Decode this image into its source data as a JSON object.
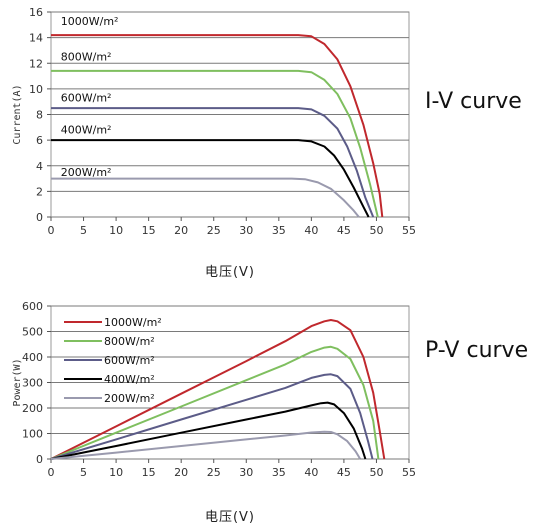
{
  "chart_data": [
    {
      "type": "line",
      "side_title": "I-V curve",
      "xlabel": "电压(V)",
      "ylabel": "Current(A)",
      "xlim": [
        0,
        55
      ],
      "ylim": [
        0,
        16
      ],
      "xticks": [
        0,
        5,
        10,
        15,
        20,
        25,
        30,
        35,
        40,
        45,
        50,
        55
      ],
      "yticks": [
        0,
        2,
        4,
        6,
        8,
        10,
        12,
        14,
        16
      ],
      "grid": "horizontal",
      "series": [
        {
          "name": "1000W/m²",
          "color": "#c0282d",
          "label_x": 1.5,
          "label_y": 15.0,
          "points": [
            [
              0,
              14.2
            ],
            [
              38,
              14.2
            ],
            [
              40,
              14.1
            ],
            [
              42,
              13.5
            ],
            [
              44,
              12.3
            ],
            [
              46,
              10.2
            ],
            [
              48,
              7.2
            ],
            [
              49.5,
              4.2
            ],
            [
              50.5,
              1.8
            ],
            [
              50.9,
              0
            ]
          ]
        },
        {
          "name": "800W/m²",
          "color": "#7fbf5f",
          "label_x": 1.5,
          "label_y": 12.2,
          "points": [
            [
              0,
              11.4
            ],
            [
              38,
              11.4
            ],
            [
              40,
              11.3
            ],
            [
              42,
              10.7
            ],
            [
              44,
              9.6
            ],
            [
              46,
              7.7
            ],
            [
              47.5,
              5.4
            ],
            [
              49,
              2.6
            ],
            [
              50.2,
              0
            ]
          ]
        },
        {
          "name": "600W/m²",
          "color": "#5c5c88",
          "label_x": 1.5,
          "label_y": 9.0,
          "points": [
            [
              0,
              8.5
            ],
            [
              38,
              8.5
            ],
            [
              40,
              8.4
            ],
            [
              42,
              7.9
            ],
            [
              44,
              6.9
            ],
            [
              45.5,
              5.5
            ],
            [
              47,
              3.6
            ],
            [
              48.3,
              1.5
            ],
            [
              49.5,
              0
            ]
          ]
        },
        {
          "name": "400W/m²",
          "color": "#000000",
          "label_x": 1.5,
          "label_y": 6.5,
          "points": [
            [
              0,
              6.0
            ],
            [
              38,
              6.0
            ],
            [
              40,
              5.9
            ],
            [
              42,
              5.5
            ],
            [
              43.5,
              4.8
            ],
            [
              45,
              3.7
            ],
            [
              46.5,
              2.3
            ],
            [
              48,
              0.8
            ],
            [
              48.8,
              0
            ]
          ]
        },
        {
          "name": "200W/m²",
          "color": "#9a9aae",
          "label_x": 1.5,
          "label_y": 3.2,
          "points": [
            [
              0,
              3.0
            ],
            [
              37,
              3.0
            ],
            [
              39,
              2.95
            ],
            [
              41,
              2.7
            ],
            [
              43,
              2.2
            ],
            [
              45,
              1.3
            ],
            [
              46.5,
              0.5
            ],
            [
              47.3,
              0
            ]
          ]
        }
      ]
    },
    {
      "type": "line",
      "side_title": "P-V curve",
      "xlabel": "电压(V)",
      "ylabel": "Power(W)",
      "xlim": [
        0,
        55
      ],
      "ylim": [
        0,
        600
      ],
      "xticks": [
        0,
        5,
        10,
        15,
        20,
        25,
        30,
        35,
        40,
        45,
        50,
        55
      ],
      "yticks": [
        0,
        100,
        200,
        300,
        400,
        500,
        600
      ],
      "grid": "horizontal",
      "legend": "top-left",
      "series": [
        {
          "name": "1000W/m²",
          "color": "#c0282d",
          "points": [
            [
              0,
              0
            ],
            [
              10,
              128
            ],
            [
              20,
              256
            ],
            [
              30,
              384
            ],
            [
              36,
              462
            ],
            [
              40,
              521
            ],
            [
              42,
              540
            ],
            [
              43,
              545
            ],
            [
              44,
              540
            ],
            [
              46,
              505
            ],
            [
              48,
              400
            ],
            [
              49.5,
              260
            ],
            [
              50.5,
              110
            ],
            [
              51.2,
              0
            ]
          ]
        },
        {
          "name": "800W/m²",
          "color": "#7fbf5f",
          "points": [
            [
              0,
              0
            ],
            [
              10,
              103
            ],
            [
              20,
              206
            ],
            [
              30,
              309
            ],
            [
              36,
              371
            ],
            [
              40,
              420
            ],
            [
              42,
              437
            ],
            [
              43,
              440
            ],
            [
              44,
              432
            ],
            [
              46,
              392
            ],
            [
              48,
              290
            ],
            [
              49.5,
              150
            ],
            [
              50.3,
              0
            ]
          ]
        },
        {
          "name": "600W/m²",
          "color": "#5c5c88",
          "points": [
            [
              0,
              0
            ],
            [
              10,
              77
            ],
            [
              20,
              155
            ],
            [
              30,
              232
            ],
            [
              36,
              279
            ],
            [
              40,
              318
            ],
            [
              42,
              330
            ],
            [
              43,
              332
            ],
            [
              44,
              325
            ],
            [
              46,
              275
            ],
            [
              47.5,
              180
            ],
            [
              48.7,
              70
            ],
            [
              49.4,
              0
            ]
          ]
        },
        {
          "name": "400W/m²",
          "color": "#000000",
          "points": [
            [
              0,
              0
            ],
            [
              10,
              51
            ],
            [
              20,
              103
            ],
            [
              30,
              155
            ],
            [
              36,
              186
            ],
            [
              40,
              210
            ],
            [
              41.5,
              219
            ],
            [
              42.5,
              221
            ],
            [
              43.5,
              214
            ],
            [
              45,
              180
            ],
            [
              46.5,
              120
            ],
            [
              47.8,
              40
            ],
            [
              48.3,
              0
            ]
          ]
        },
        {
          "name": "200W/m²",
          "color": "#9a9aae",
          "points": [
            [
              0,
              0
            ],
            [
              10,
              25
            ],
            [
              20,
              51
            ],
            [
              30,
              77
            ],
            [
              36,
              92
            ],
            [
              40,
              104
            ],
            [
              42,
              107
            ],
            [
              43,
              106
            ],
            [
              44,
              97
            ],
            [
              45.5,
              70
            ],
            [
              46.8,
              30
            ],
            [
              47.5,
              0
            ]
          ]
        }
      ]
    }
  ]
}
